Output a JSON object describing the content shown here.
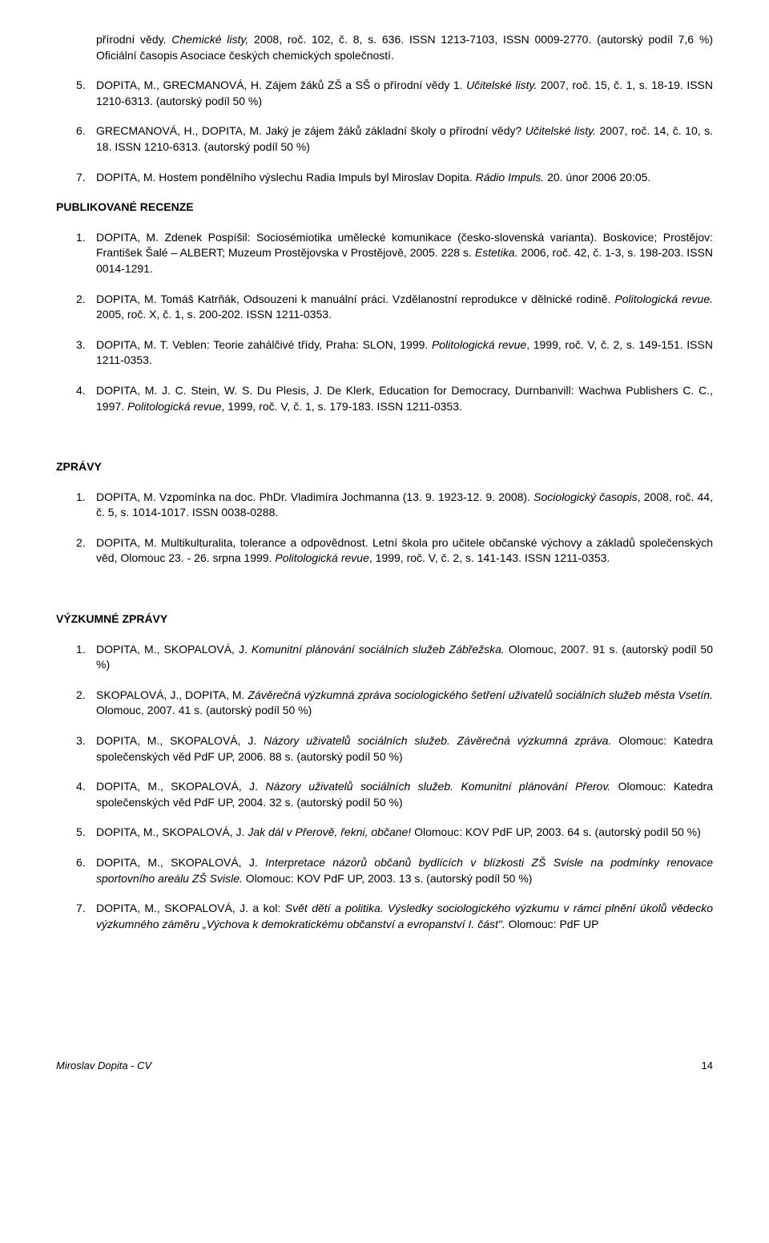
{
  "continuation": {
    "items": [
      {
        "num": "",
        "text": "přírodní vědy. <i>Chemické listy,</i> 2008, roč. 102, č. 8, s. 636. ISSN 1213-7103, ISSN 0009-2770. (autorský podíl 7,6 %) Oficiální časopis Asociace českých chemických společností."
      },
      {
        "num": "5.",
        "text": "DOPITA, M., GRECMANOVÁ, H. Zájem žáků ZŠ a SŠ o přírodní vědy 1. <i>Učitelské listy.</i> 2007, roč. 15, č. 1, s. 18-19. ISSN 1210-6313. (autorský podíl 50 %)"
      },
      {
        "num": "6.",
        "text": "GRECMANOVÁ, H., DOPITA, M. Jaký je zájem žáků základní školy o přírodní vědy? <i>Učitelské listy.</i> 2007, roč. 14, č. 10, s. 18. ISSN 1210-6313. (autorský podíl 50 %)"
      },
      {
        "num": "7.",
        "text": "DOPITA, M. Hostem pondělního výslechu Radia Impuls byl Miroslav Dopita. <i>Rádio Impuls.</i> 20. únor 2006 20:05."
      }
    ]
  },
  "sections": [
    {
      "heading": "PUBLIKOVANÉ RECENZE",
      "items": [
        {
          "num": "1.",
          "text": "DOPITA, M. Zdenek Pospíšil: Sociosémiotika umělecké komunikace (česko-slovenská varianta). Boskovice; Prostějov: František Šalé – ALBERT; Muzeum Prostějovska v Prostějově, 2005. 228 s. <i>Estetika.</i> 2006, roč. 42, č. 1-3, s. 198-203. ISSN 0014-1291."
        },
        {
          "num": "2.",
          "text": "DOPITA, M. Tomáš Katrňák, Odsouzeni k manuální práci. Vzdělanostní reprodukce v dělnické rodině. <i>Politologická revue.</i> 2005, roč. X, č. 1, s. 200-202. ISSN 1211-0353."
        },
        {
          "num": "3.",
          "text": "DOPITA, M. T. Veblen: Teorie zahálčivé třídy, Praha: SLON, 1999. <i>Politologická revue</i>, 1999, roč. V, č. 2, s. 149-151. ISSN 1211-0353."
        },
        {
          "num": "4.",
          "text": "DOPITA, M. J. C. Stein, W. S. Du Plesis, J. De Klerk, Education for Democracy, Durnbanvill: Wachwa Publishers C. C., 1997. <i>Politologická revue</i>, 1999, roč. V, č. 1, s. 179-183. ISSN 1211-0353."
        }
      ]
    },
    {
      "heading": "ZPRÁVY",
      "items": [
        {
          "num": "1.",
          "text": "DOPITA, M. Vzpomínka na doc. PhDr. Vladimíra Jochmanna (13. 9. 1923-12. 9. 2008). <i>Sociologický časopis</i>, 2008, roč. 44, č. 5, s. 1014-1017. ISSN 0038-0288."
        },
        {
          "num": "2.",
          "text": "DOPITA, M. Multikulturalita, tolerance a odpovědnost. Letní škola pro učitele občanské výchovy a základů společenských věd, Olomouc 23. - 26. srpna 1999. <i>Politologická revue</i>, 1999, roč. V, č. 2, s. 141-143. ISSN 1211-0353."
        }
      ]
    },
    {
      "heading": "VÝZKUMNÉ ZPRÁVY",
      "items": [
        {
          "num": "1.",
          "text": "DOPITA, M., SKOPALOVÁ, J. <i>Komunitní plánování sociálních služeb Zábřežska.</i> Olomouc, 2007. 91 s. (autorský podíl 50 %)"
        },
        {
          "num": "2.",
          "text": "SKOPALOVÁ, J., DOPITA, M. <i>Závěrečná výzkumná zpráva sociologického šetření uživatelů sociálních služeb města Vsetín.</i> Olomouc, 2007. 41 s. (autorský podíl 50 %)"
        },
        {
          "num": "3.",
          "text": "DOPITA, M., SKOPALOVÁ, J. <i>Názory uživatelů sociálních služeb. Závěrečná výzkumná zpráva.</i> Olomouc: Katedra společenských věd PdF UP, 2006. 88 s. (autorský podíl 50 %)"
        },
        {
          "num": "4.",
          "text": "DOPITA, M., SKOPALOVÁ, J. <i>Názory uživatelů sociálních služeb. Komunitní plánování Přerov.</i> Olomouc: Katedra společenských věd PdF UP, 2004. 32 s. (autorský podíl 50 %)"
        },
        {
          "num": "5.",
          "text": "DOPITA, M., SKOPALOVÁ, J. <i>Jak dál v Přerově, řekni, občane!</i> Olomouc: KOV PdF UP, 2003. 64 s. (autorský podíl 50 %)"
        },
        {
          "num": "6.",
          "text": "DOPITA, M., SKOPALOVÁ, J. <i>Interpretace názorů občanů bydlících v blízkosti ZŠ Svisle na podmínky renovace sportovního areálu ZŠ Svisle.</i> Olomouc: KOV PdF UP, 2003. 13 s. (autorský podíl 50 %)"
        },
        {
          "num": "7.",
          "text": "DOPITA, M., SKOPALOVÁ, J. a kol: <i>Svět dětí a politika. Výsledky sociologického výzkumu v rámci plnění úkolů vědecko výzkumného záměru „Výchova k demokratickému občanství a evropanství I. část\".</i> Olomouc: PdF UP"
        }
      ]
    }
  ],
  "footer": {
    "left": "Miroslav Dopita - CV",
    "page": "14"
  }
}
